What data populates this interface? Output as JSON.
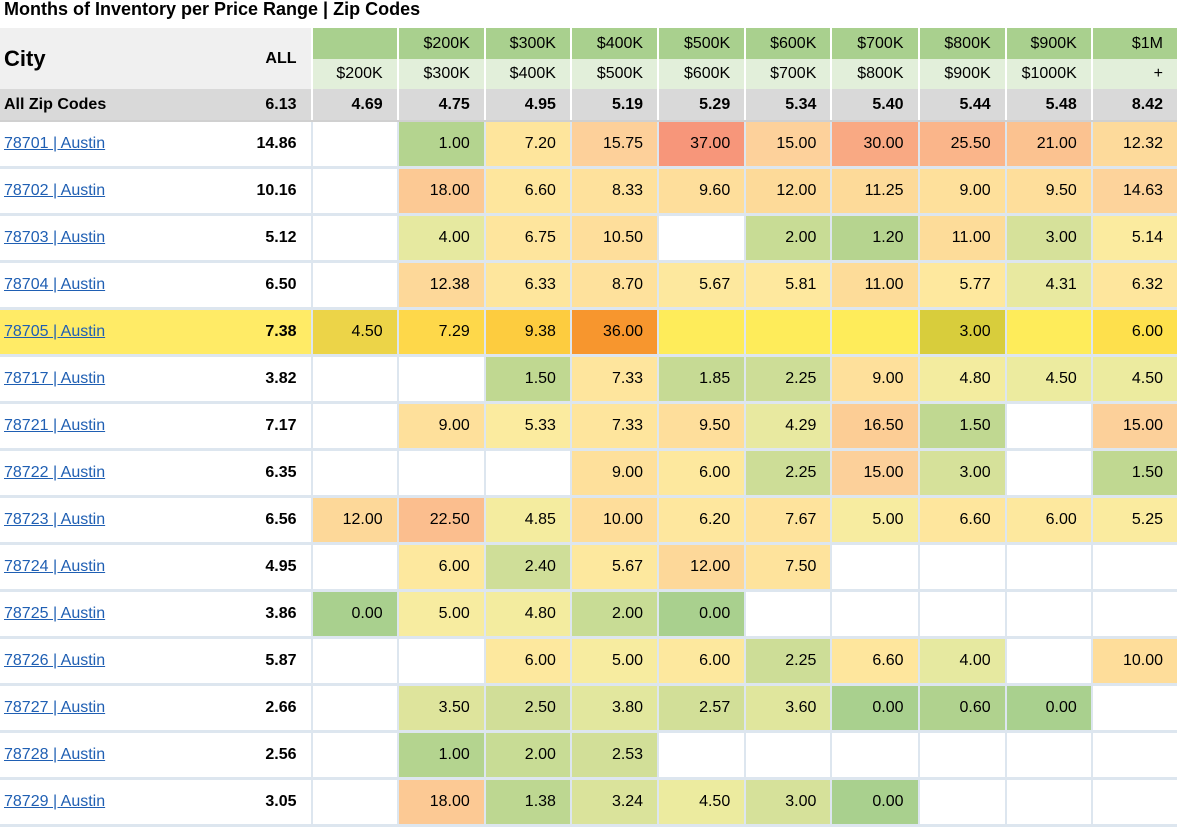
{
  "title": "Months of Inventory per Price Range | Zip Codes",
  "header": {
    "city_label": "City",
    "all_label": "ALL",
    "ranges": [
      {
        "top": "",
        "bottom": "$200K"
      },
      {
        "top": "$200K",
        "bottom": "$300K"
      },
      {
        "top": "$300K",
        "bottom": "$400K"
      },
      {
        "top": "$400K",
        "bottom": "$500K"
      },
      {
        "top": "$500K",
        "bottom": "$600K"
      },
      {
        "top": "$600K",
        "bottom": "$700K"
      },
      {
        "top": "$700K",
        "bottom": "$800K"
      },
      {
        "top": "$800K",
        "bottom": "$900K"
      },
      {
        "top": "$900K",
        "bottom": "$1000K"
      },
      {
        "top": "$1M",
        "bottom": "+"
      }
    ]
  },
  "summary": {
    "label": "All Zip Codes",
    "all": "6.13",
    "values": [
      "4.69",
      "4.75",
      "4.95",
      "5.19",
      "5.29",
      "5.34",
      "5.40",
      "5.44",
      "5.48",
      "8.42"
    ]
  },
  "rows": [
    {
      "city": "78701 | Austin",
      "all": "14.86",
      "values": [
        "",
        "1.00",
        "7.20",
        "15.75",
        "37.00",
        "15.00",
        "30.00",
        "25.50",
        "21.00",
        "12.32"
      ],
      "colors": [
        "#ffffff",
        "#b4d48f",
        "#fee59c",
        "#fdd09a",
        "#f7967a",
        "#fdd19b",
        "#f9a983",
        "#fab58a",
        "#fbc290",
        "#fdda9b"
      ]
    },
    {
      "city": "78702 | Austin",
      "all": "10.16",
      "values": [
        "",
        "18.00",
        "6.60",
        "8.33",
        "9.60",
        "12.00",
        "11.25",
        "9.00",
        "9.50",
        "14.63"
      ],
      "colors": [
        "#ffffff",
        "#fcc994",
        "#fee69d",
        "#fee19c",
        "#fede9b",
        "#fdda99",
        "#fdda99",
        "#fee09b",
        "#fede9b",
        "#fdd39b"
      ]
    },
    {
      "city": "78703 | Austin",
      "all": "5.12",
      "values": [
        "",
        "4.00",
        "6.75",
        "10.50",
        "",
        "2.00",
        "1.20",
        "11.00",
        "3.00",
        "5.14"
      ],
      "colors": [
        "#ffffff",
        "#e6e9a0",
        "#fee59d",
        "#fede9b",
        "#ffffff",
        "#c8dc95",
        "#b6d48f",
        "#fddc99",
        "#d6e19a",
        "#fbeb9f"
      ]
    },
    {
      "city": "78704 | Austin",
      "all": "6.50",
      "values": [
        "",
        "12.38",
        "6.33",
        "8.70",
        "5.67",
        "5.81",
        "11.00",
        "5.77",
        "4.31",
        "6.32"
      ],
      "colors": [
        "#ffffff",
        "#fdd899",
        "#fee69d",
        "#fee19c",
        "#fde89e",
        "#fee89e",
        "#fddc99",
        "#fee89e",
        "#e8e9a0",
        "#fee69d"
      ]
    },
    {
      "city": "78705 | Austin",
      "all": "7.38",
      "values": [
        "4.50",
        "7.29",
        "9.38",
        "36.00",
        "",
        "",
        "",
        "3.00",
        "",
        "6.00"
      ],
      "colors": [
        "#ecd448",
        "#fed84a",
        "#fdcc3f",
        "#f7962e",
        "#feec5a",
        "#feec5a",
        "#feec5a",
        "#d8cd3c",
        "#feec5a",
        "#fee04c"
      ],
      "highlight": true
    },
    {
      "city": "78717 | Austin",
      "all": "3.82",
      "values": [
        "",
        "",
        "1.50",
        "7.33",
        "1.85",
        "2.25",
        "9.00",
        "4.80",
        "4.50",
        "4.50"
      ],
      "colors": [
        "#ffffff",
        "#ffffff",
        "#c0d891",
        "#fee59d",
        "#c6da94",
        "#cddd97",
        "#fee09b",
        "#f3ec9f",
        "#eceb9f",
        "#eceb9f"
      ]
    },
    {
      "city": "78721 | Austin",
      "all": "7.17",
      "values": [
        "",
        "9.00",
        "5.33",
        "7.33",
        "9.50",
        "4.29",
        "16.50",
        "1.50",
        "",
        "15.00"
      ],
      "colors": [
        "#ffffff",
        "#fee09b",
        "#fbeb9f",
        "#fee59d",
        "#fede9b",
        "#e8e9a0",
        "#fccd95",
        "#c0d891",
        "#ffffff",
        "#fcd09a"
      ]
    },
    {
      "city": "78722 | Austin",
      "all": "6.35",
      "values": [
        "",
        "",
        "",
        "9.00",
        "6.00",
        "2.25",
        "15.00",
        "3.00",
        "",
        "1.50"
      ],
      "colors": [
        "#ffffff",
        "#ffffff",
        "#ffffff",
        "#fee09b",
        "#fde89e",
        "#cddd97",
        "#fcd09a",
        "#d6e19a",
        "#ffffff",
        "#c0d891"
      ]
    },
    {
      "city": "78723 | Austin",
      "all": "6.56",
      "values": [
        "12.00",
        "22.50",
        "4.85",
        "10.00",
        "6.20",
        "7.67",
        "5.00",
        "6.60",
        "6.00",
        "5.25"
      ],
      "colors": [
        "#fdd899",
        "#fbbe8e",
        "#f4ec9f",
        "#fedd9a",
        "#fee79e",
        "#fee39c",
        "#f7eca0",
        "#fee69d",
        "#fde89e",
        "#faeb9f"
      ]
    },
    {
      "city": "78724 | Austin",
      "all": "4.95",
      "values": [
        "",
        "6.00",
        "2.40",
        "5.67",
        "12.00",
        "7.50",
        "",
        "",
        "",
        ""
      ],
      "colors": [
        "#ffffff",
        "#fde89e",
        "#cfde98",
        "#fde89e",
        "#fdd899",
        "#fee39c",
        "#ffffff",
        "#ffffff",
        "#ffffff",
        "#ffffff"
      ]
    },
    {
      "city": "78725 | Austin",
      "all": "3.86",
      "values": [
        "0.00",
        "5.00",
        "4.80",
        "2.00",
        "0.00",
        "",
        "",
        "",
        "",
        ""
      ],
      "colors": [
        "#a9d08e",
        "#f7eca0",
        "#f3ec9f",
        "#c8dc95",
        "#a9d08e",
        "#ffffff",
        "#ffffff",
        "#ffffff",
        "#ffffff",
        "#ffffff"
      ]
    },
    {
      "city": "78726 | Austin",
      "all": "5.87",
      "values": [
        "",
        "",
        "6.00",
        "5.00",
        "6.00",
        "2.25",
        "6.60",
        "4.00",
        "",
        "10.00"
      ],
      "colors": [
        "#ffffff",
        "#ffffff",
        "#fde89e",
        "#f7eca0",
        "#fde89e",
        "#cddd97",
        "#fee69d",
        "#e6e9a0",
        "#ffffff",
        "#fedd9a"
      ]
    },
    {
      "city": "78727 | Austin",
      "all": "2.66",
      "values": [
        "",
        "3.50",
        "2.50",
        "3.80",
        "2.57",
        "3.60",
        "0.00",
        "0.60",
        "0.00",
        ""
      ],
      "colors": [
        "#ffffff",
        "#dee49c",
        "#d1de98",
        "#e2e79e",
        "#d2df98",
        "#e0e69d",
        "#a9d08e",
        "#b0d28e",
        "#a9d08e",
        "#ffffff"
      ]
    },
    {
      "city": "78728 | Austin",
      "all": "2.56",
      "values": [
        "",
        "1.00",
        "2.00",
        "2.53",
        "",
        "",
        "",
        "",
        "",
        ""
      ],
      "colors": [
        "#ffffff",
        "#b4d48f",
        "#c8dc95",
        "#d2df98",
        "#ffffff",
        "#ffffff",
        "#ffffff",
        "#ffffff",
        "#ffffff",
        "#ffffff"
      ]
    },
    {
      "city": "78729 | Austin",
      "all": "3.05",
      "values": [
        "",
        "18.00",
        "1.38",
        "3.24",
        "4.50",
        "3.00",
        "0.00",
        "",
        "",
        ""
      ],
      "colors": [
        "#ffffff",
        "#fcc994",
        "#bdd791",
        "#dae39b",
        "#eceb9f",
        "#d6e19a",
        "#a9d08e",
        "#ffffff",
        "#ffffff",
        "#ffffff"
      ]
    }
  ]
}
